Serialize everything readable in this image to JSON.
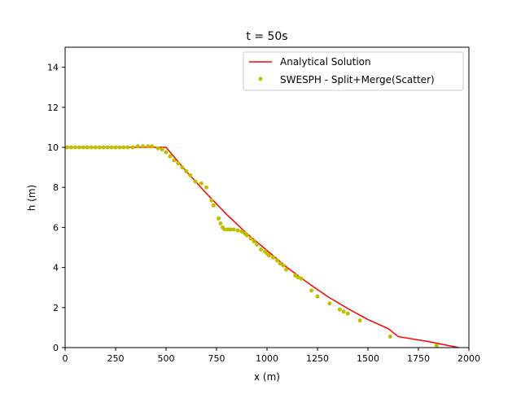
{
  "chart_data": {
    "type": "line",
    "title": "t = 50s",
    "xlabel": "x (m)",
    "ylabel": "h (m)",
    "xlim": [
      0,
      2000
    ],
    "ylim": [
      0,
      15
    ],
    "x_ticks": [
      0,
      250,
      500,
      750,
      1000,
      1250,
      1500,
      1750,
      2000
    ],
    "y_ticks": [
      0,
      2,
      4,
      6,
      8,
      10,
      12,
      14
    ],
    "grid": false,
    "legend_position": "top-right",
    "series": [
      {
        "name": "Analytical Solution",
        "kind": "line",
        "color": "#ff0000",
        "points": [
          [
            0,
            10
          ],
          [
            500,
            10
          ],
          [
            550,
            9.4
          ],
          [
            600,
            8.8
          ],
          [
            700,
            7.7
          ],
          [
            800,
            6.65
          ],
          [
            900,
            5.7
          ],
          [
            1000,
            4.85
          ],
          [
            1100,
            4.0
          ],
          [
            1200,
            3.25
          ],
          [
            1300,
            2.55
          ],
          [
            1400,
            1.95
          ],
          [
            1500,
            1.4
          ],
          [
            1600,
            0.95
          ],
          [
            1650,
            0.55
          ],
          [
            1800,
            0.3
          ],
          [
            1950,
            0
          ]
        ]
      },
      {
        "name": "SWESPH - Split+Merge(Scatter)",
        "kind": "scatter",
        "color": "#bfbf00",
        "points": [
          [
            10,
            10
          ],
          [
            30,
            10
          ],
          [
            50,
            10
          ],
          [
            70,
            10
          ],
          [
            90,
            10
          ],
          [
            110,
            10
          ],
          [
            130,
            10
          ],
          [
            150,
            10
          ],
          [
            170,
            10
          ],
          [
            190,
            10
          ],
          [
            210,
            10
          ],
          [
            230,
            10
          ],
          [
            250,
            10
          ],
          [
            270,
            10
          ],
          [
            290,
            10
          ],
          [
            310,
            10
          ],
          [
            335,
            10
          ],
          [
            360,
            10.05
          ],
          [
            385,
            10.05
          ],
          [
            410,
            10.05
          ],
          [
            430,
            10.05
          ],
          [
            460,
            9.95
          ],
          [
            480,
            9.9
          ],
          [
            500,
            9.75
          ],
          [
            520,
            9.55
          ],
          [
            540,
            9.35
          ],
          [
            560,
            9.2
          ],
          [
            580,
            9.0
          ],
          [
            600,
            8.8
          ],
          [
            620,
            8.6
          ],
          [
            645,
            8.3
          ],
          [
            675,
            8.2
          ],
          [
            700,
            8.0
          ],
          [
            725,
            7.35
          ],
          [
            735,
            7.1
          ],
          [
            760,
            6.45
          ],
          [
            770,
            6.2
          ],
          [
            780,
            6.0
          ],
          [
            790,
            5.9
          ],
          [
            805,
            5.9
          ],
          [
            820,
            5.9
          ],
          [
            835,
            5.9
          ],
          [
            855,
            5.85
          ],
          [
            875,
            5.8
          ],
          [
            890,
            5.7
          ],
          [
            900,
            5.6
          ],
          [
            920,
            5.45
          ],
          [
            935,
            5.3
          ],
          [
            950,
            5.15
          ],
          [
            970,
            4.9
          ],
          [
            990,
            4.8
          ],
          [
            1000,
            4.7
          ],
          [
            1010,
            4.6
          ],
          [
            1030,
            4.5
          ],
          [
            1050,
            4.35
          ],
          [
            1065,
            4.2
          ],
          [
            1080,
            4.1
          ],
          [
            1095,
            3.9
          ],
          [
            1140,
            3.6
          ],
          [
            1155,
            3.5
          ],
          [
            1170,
            3.45
          ],
          [
            1220,
            2.85
          ],
          [
            1250,
            2.55
          ],
          [
            1310,
            2.2
          ],
          [
            1360,
            1.9
          ],
          [
            1380,
            1.8
          ],
          [
            1400,
            1.7
          ],
          [
            1460,
            1.35
          ],
          [
            1610,
            0.55
          ],
          [
            1840,
            0.1
          ]
        ]
      }
    ]
  }
}
